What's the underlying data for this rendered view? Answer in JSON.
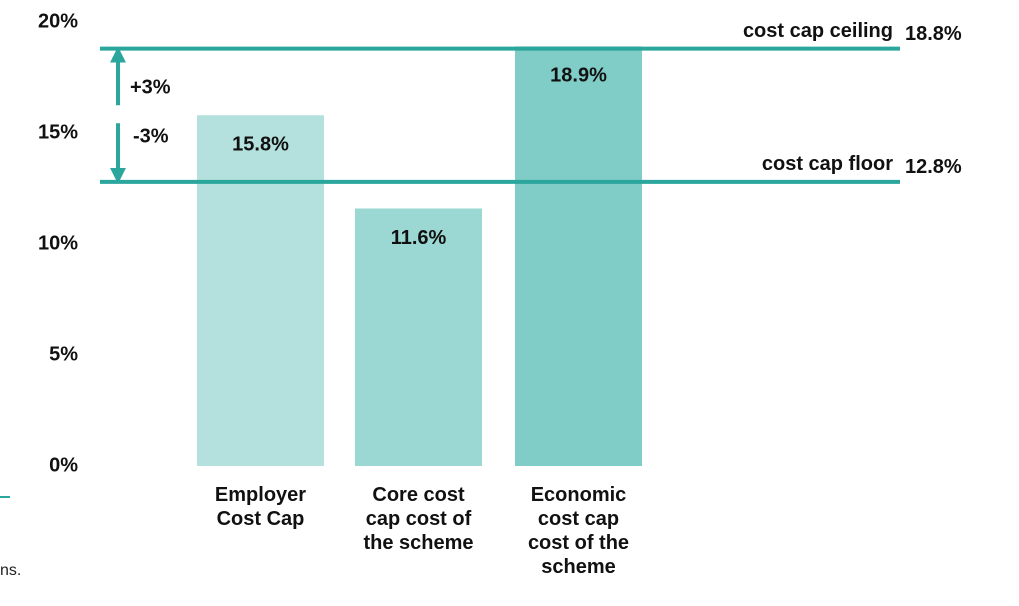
{
  "chart_data": {
    "type": "bar",
    "categories": [
      "Employer Cost Cap",
      "Core cost cap cost of the scheme",
      "Economic cost cap cost of the scheme"
    ],
    "values": [
      15.8,
      11.6,
      18.9
    ],
    "value_labels": [
      "15.8%",
      "11.6%",
      "18.9%"
    ],
    "colors": [
      "#b4e1dd",
      "#9cd8d3",
      "#80cdc7"
    ],
    "ylim": [
      0,
      20
    ],
    "yticks": [
      {
        "value": 0,
        "label": "0%"
      },
      {
        "value": 5,
        "label": "5%"
      },
      {
        "value": 10,
        "label": "10%"
      },
      {
        "value": 15,
        "label": "15%"
      },
      {
        "value": 20,
        "label": "20%"
      }
    ],
    "grid": false,
    "reference_lines": [
      {
        "label": "cost cap ceiling",
        "value": 18.8,
        "value_label": "18.8%",
        "color": "#2aa69c"
      },
      {
        "label": "cost cap floor",
        "value": 12.8,
        "value_label": "12.8%",
        "color": "#2aa69c"
      }
    ],
    "annotations": [
      {
        "text": "+3%"
      },
      {
        "text": "-3%"
      }
    ],
    "footnote": "ns."
  }
}
